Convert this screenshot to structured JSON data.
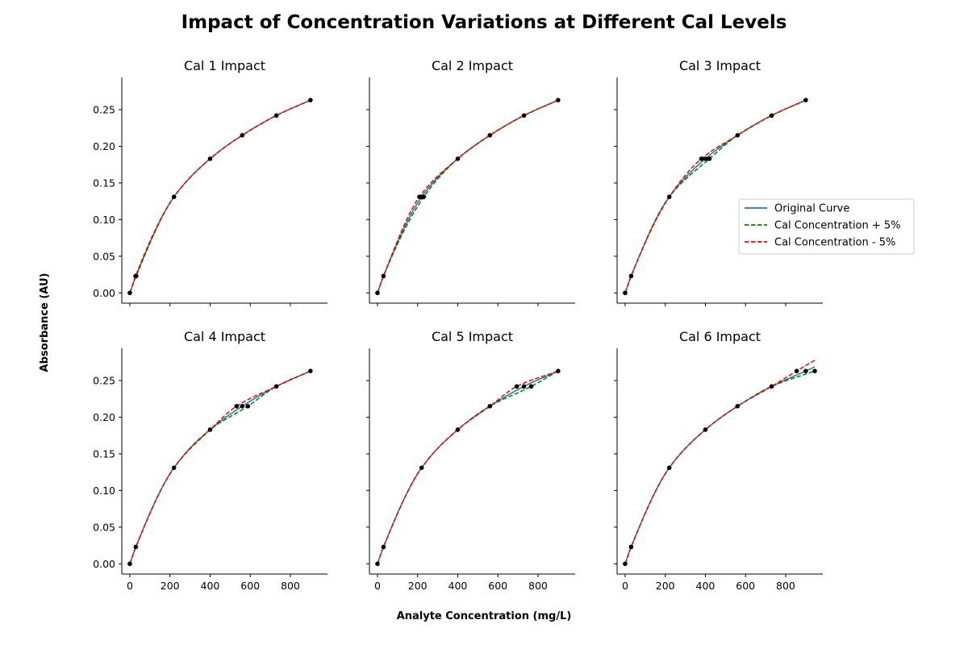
{
  "figure": {
    "title": "Impact of Concentration Variations at Different Cal Levels",
    "xlabel": "Analyte Concentration (mg/L)",
    "ylabel": "Absorbance (AU)"
  },
  "legend": {
    "placement": "right of Cal 3 panel",
    "entries": [
      {
        "label": "Original Curve",
        "color": "#1f77b4",
        "style": "solid"
      },
      {
        "label": "Cal Concentration + 5%",
        "color": "#008000",
        "style": "dashed"
      },
      {
        "label": "Cal Concentration  - 5%",
        "color": "#ff0000",
        "style": "dashed"
      }
    ]
  },
  "chart_data": {
    "type": "line",
    "xlim": [
      -40,
      985
    ],
    "ylim": [
      -0.014,
      0.294
    ],
    "xticks": [
      0,
      200,
      400,
      600,
      800
    ],
    "yticks": [
      0.0,
      0.05,
      0.1,
      0.15,
      0.2,
      0.25
    ],
    "xtick_labels": [
      "0",
      "200",
      "400",
      "600",
      "800"
    ],
    "ytick_labels": [
      "0.00",
      "0.05",
      "0.10",
      "0.15",
      "0.20",
      "0.25"
    ],
    "grid": false,
    "calibrators": {
      "x": [
        0,
        30,
        220,
        400,
        560,
        730,
        900
      ],
      "y": [
        0.0,
        0.023,
        0.131,
        0.183,
        0.215,
        0.242,
        0.263
      ]
    },
    "panels": [
      {
        "title": "Cal 1 Impact",
        "cal_index": 1,
        "plus_x": 31.5,
        "minus_x": 28.5,
        "original_x": [
          0,
          30,
          220,
          400,
          560,
          730,
          900
        ],
        "plus_x_cal": [
          0,
          31.5,
          220,
          400,
          560,
          730,
          900
        ],
        "minus_x_cal": [
          0,
          28.5,
          220,
          400,
          560,
          730,
          900
        ],
        "extends_to": 900
      },
      {
        "title": "Cal 2 Impact",
        "cal_index": 2,
        "plus_x": 231,
        "minus_x": 209,
        "original_x": [
          0,
          30,
          220,
          400,
          560,
          730,
          900
        ],
        "plus_x_cal": [
          0,
          30,
          231,
          400,
          560,
          730,
          900
        ],
        "minus_x_cal": [
          0,
          30,
          209,
          400,
          560,
          730,
          900
        ],
        "extends_to": 900
      },
      {
        "title": "Cal 3 Impact",
        "cal_index": 3,
        "plus_x": 420,
        "minus_x": 380,
        "original_x": [
          0,
          30,
          220,
          400,
          560,
          730,
          900
        ],
        "plus_x_cal": [
          0,
          30,
          220,
          420,
          560,
          730,
          900
        ],
        "minus_x_cal": [
          0,
          30,
          220,
          380,
          560,
          730,
          900
        ],
        "extends_to": 900
      },
      {
        "title": "Cal 4 Impact",
        "cal_index": 4,
        "plus_x": 588,
        "minus_x": 532,
        "original_x": [
          0,
          30,
          220,
          400,
          560,
          730,
          900
        ],
        "plus_x_cal": [
          0,
          30,
          220,
          400,
          588,
          730,
          900
        ],
        "minus_x_cal": [
          0,
          30,
          220,
          400,
          532,
          730,
          900
        ],
        "extends_to": 900
      },
      {
        "title": "Cal 5 Impact",
        "cal_index": 5,
        "plus_x": 766,
        "minus_x": 694,
        "original_x": [
          0,
          30,
          220,
          400,
          560,
          730,
          900
        ],
        "plus_x_cal": [
          0,
          30,
          220,
          400,
          560,
          766,
          900
        ],
        "minus_x_cal": [
          0,
          30,
          220,
          400,
          560,
          694,
          900
        ],
        "extends_to": 900
      },
      {
        "title": "Cal 6 Impact",
        "cal_index": 6,
        "plus_x": 945,
        "minus_x": 855,
        "original_x": [
          0,
          30,
          220,
          400,
          560,
          730,
          900
        ],
        "plus_x_cal": [
          0,
          30,
          220,
          400,
          560,
          730,
          945
        ],
        "minus_x_cal": [
          0,
          30,
          220,
          400,
          560,
          730,
          855
        ],
        "extends_to": 945
      }
    ]
  }
}
